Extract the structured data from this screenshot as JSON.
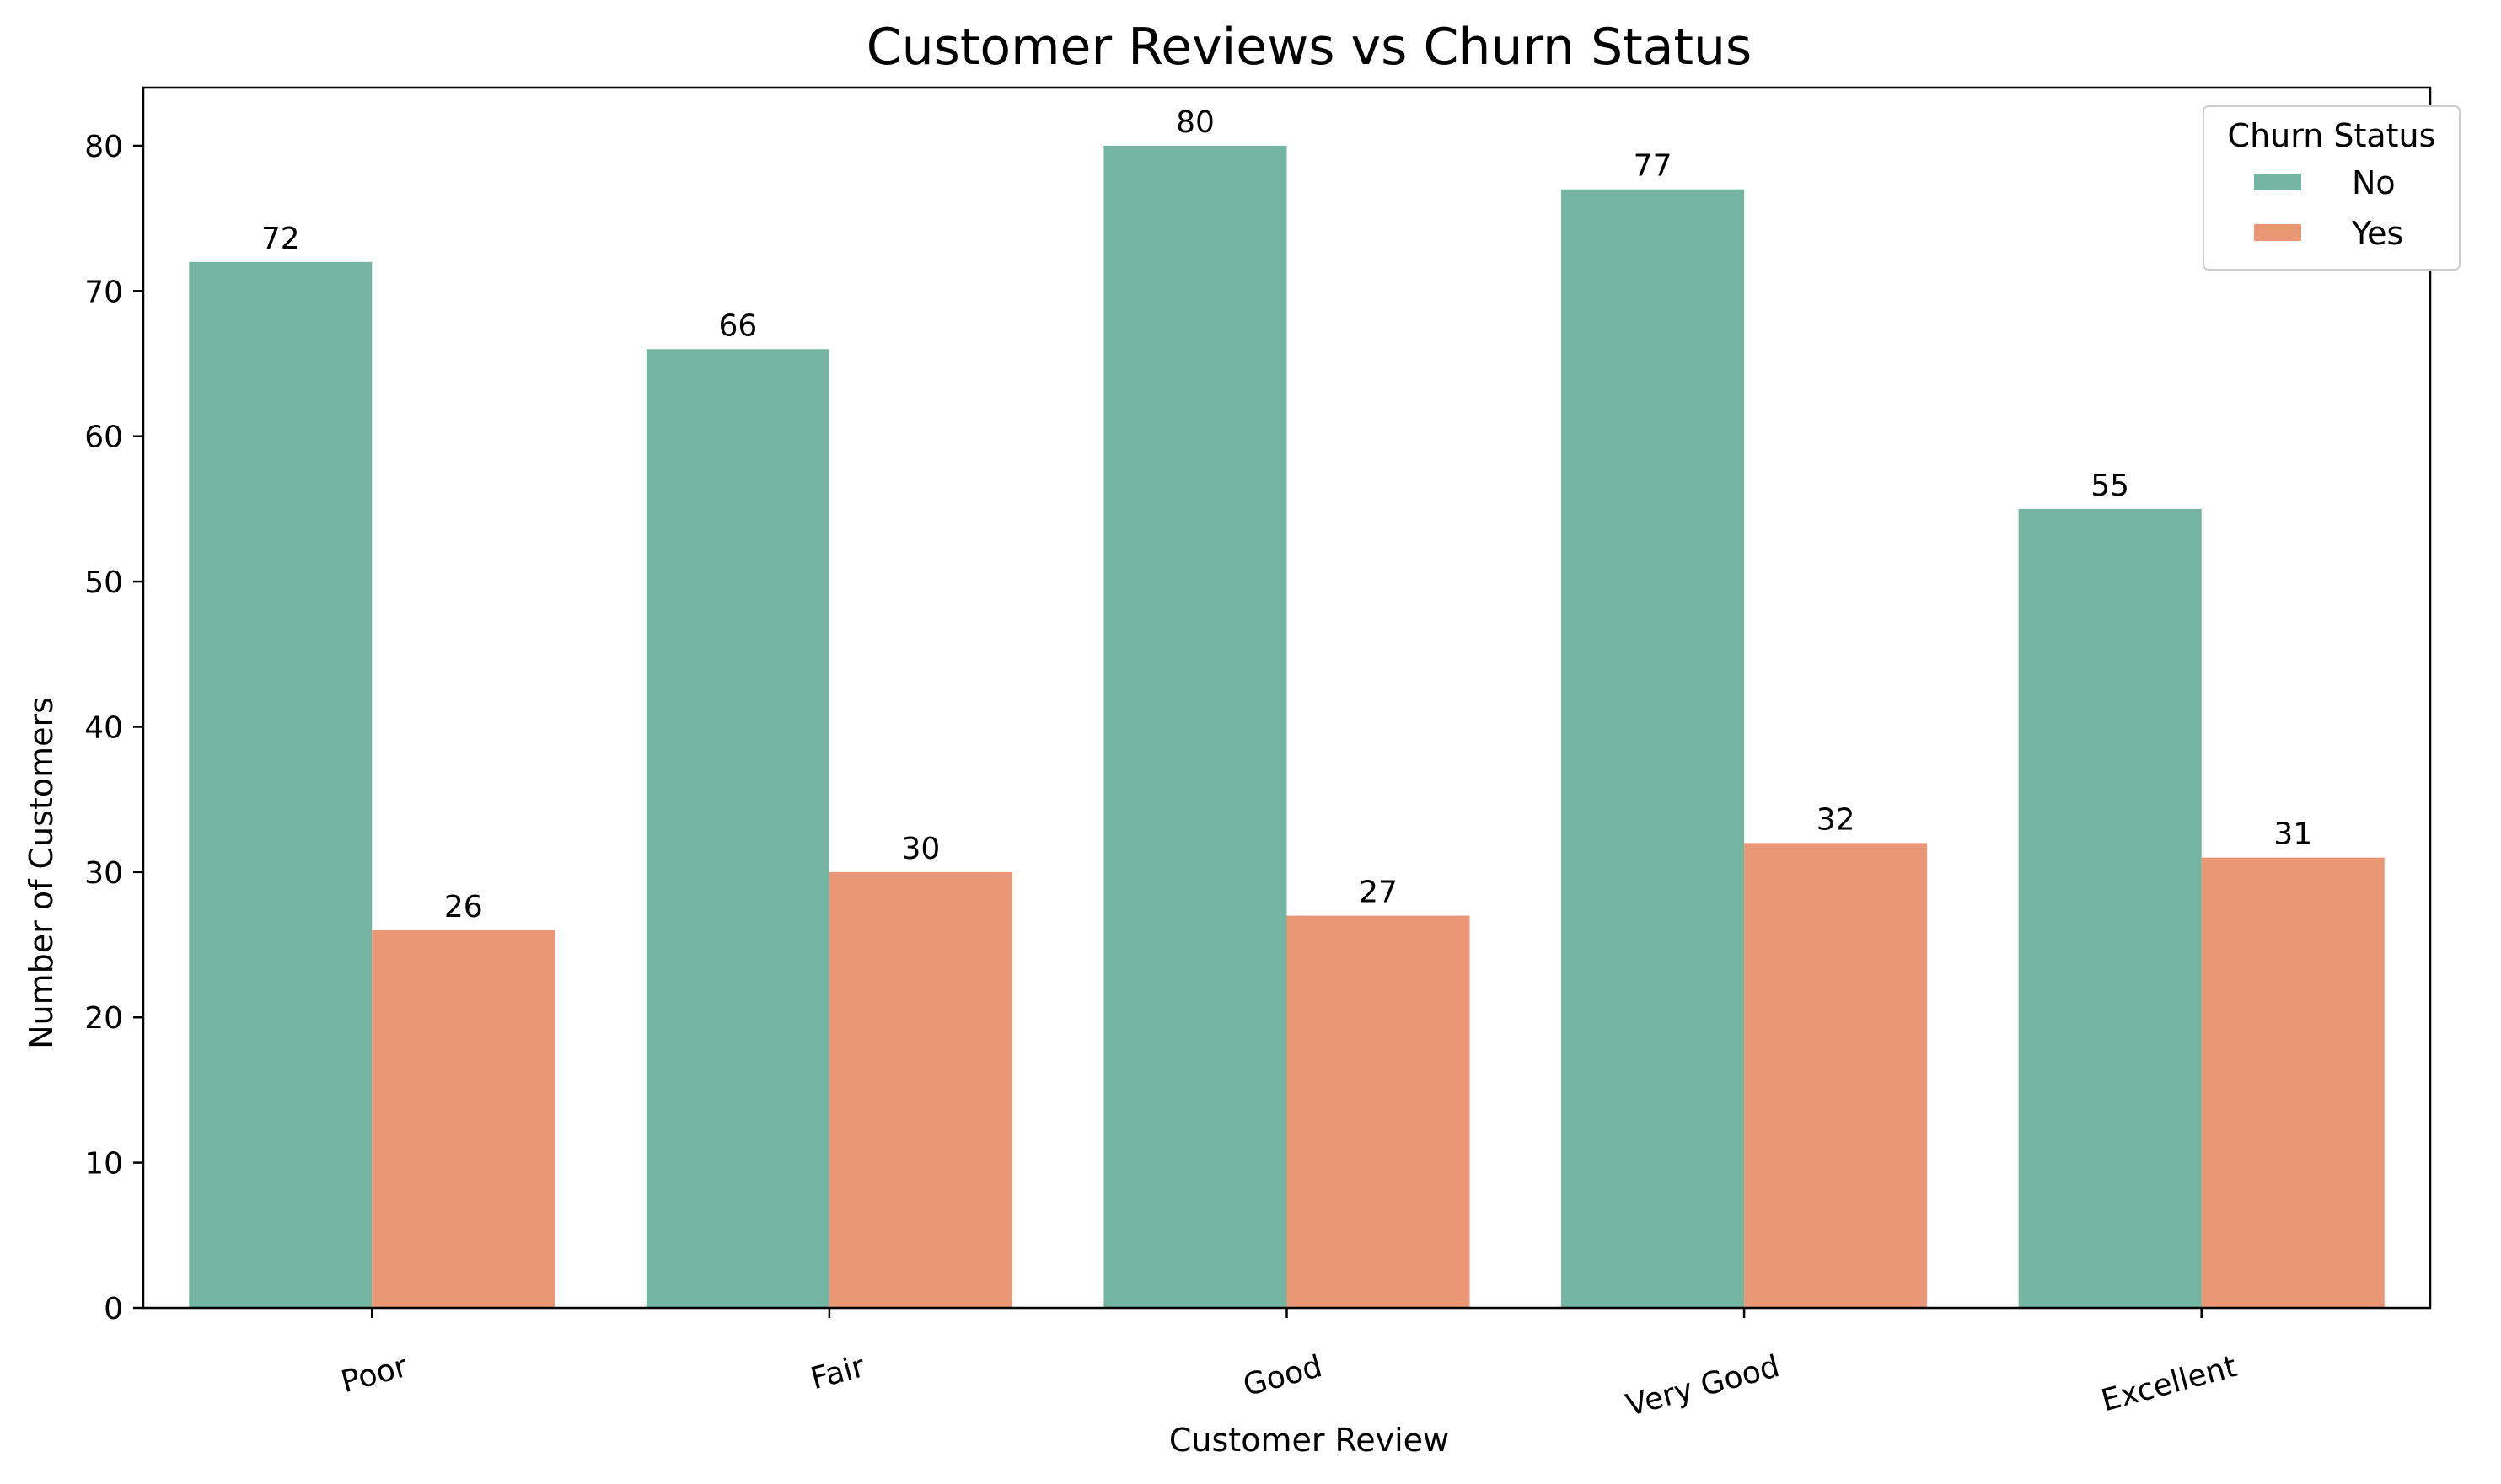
{
  "chart_data": {
    "type": "bar",
    "title": "Customer Reviews vs Churn Status",
    "xlabel": "Customer Review",
    "ylabel": "Number of Customers",
    "categories": [
      "Poor",
      "Fair",
      "Good",
      "Very Good",
      "Excellent"
    ],
    "series": [
      {
        "name": "No",
        "color": "#73b5a0",
        "values": [
          72,
          66,
          80,
          77,
          55
        ]
      },
      {
        "name": "Yes",
        "color": "#e99775",
        "values": [
          26,
          30,
          27,
          32,
          31
        ]
      }
    ],
    "ylim": [
      0,
      84
    ],
    "yticks": [
      "0",
      "10",
      "20",
      "30",
      "40",
      "50",
      "60",
      "70",
      "80"
    ],
    "grid": false,
    "legend": {
      "title": "Churn Status",
      "placement": "top-right"
    }
  }
}
